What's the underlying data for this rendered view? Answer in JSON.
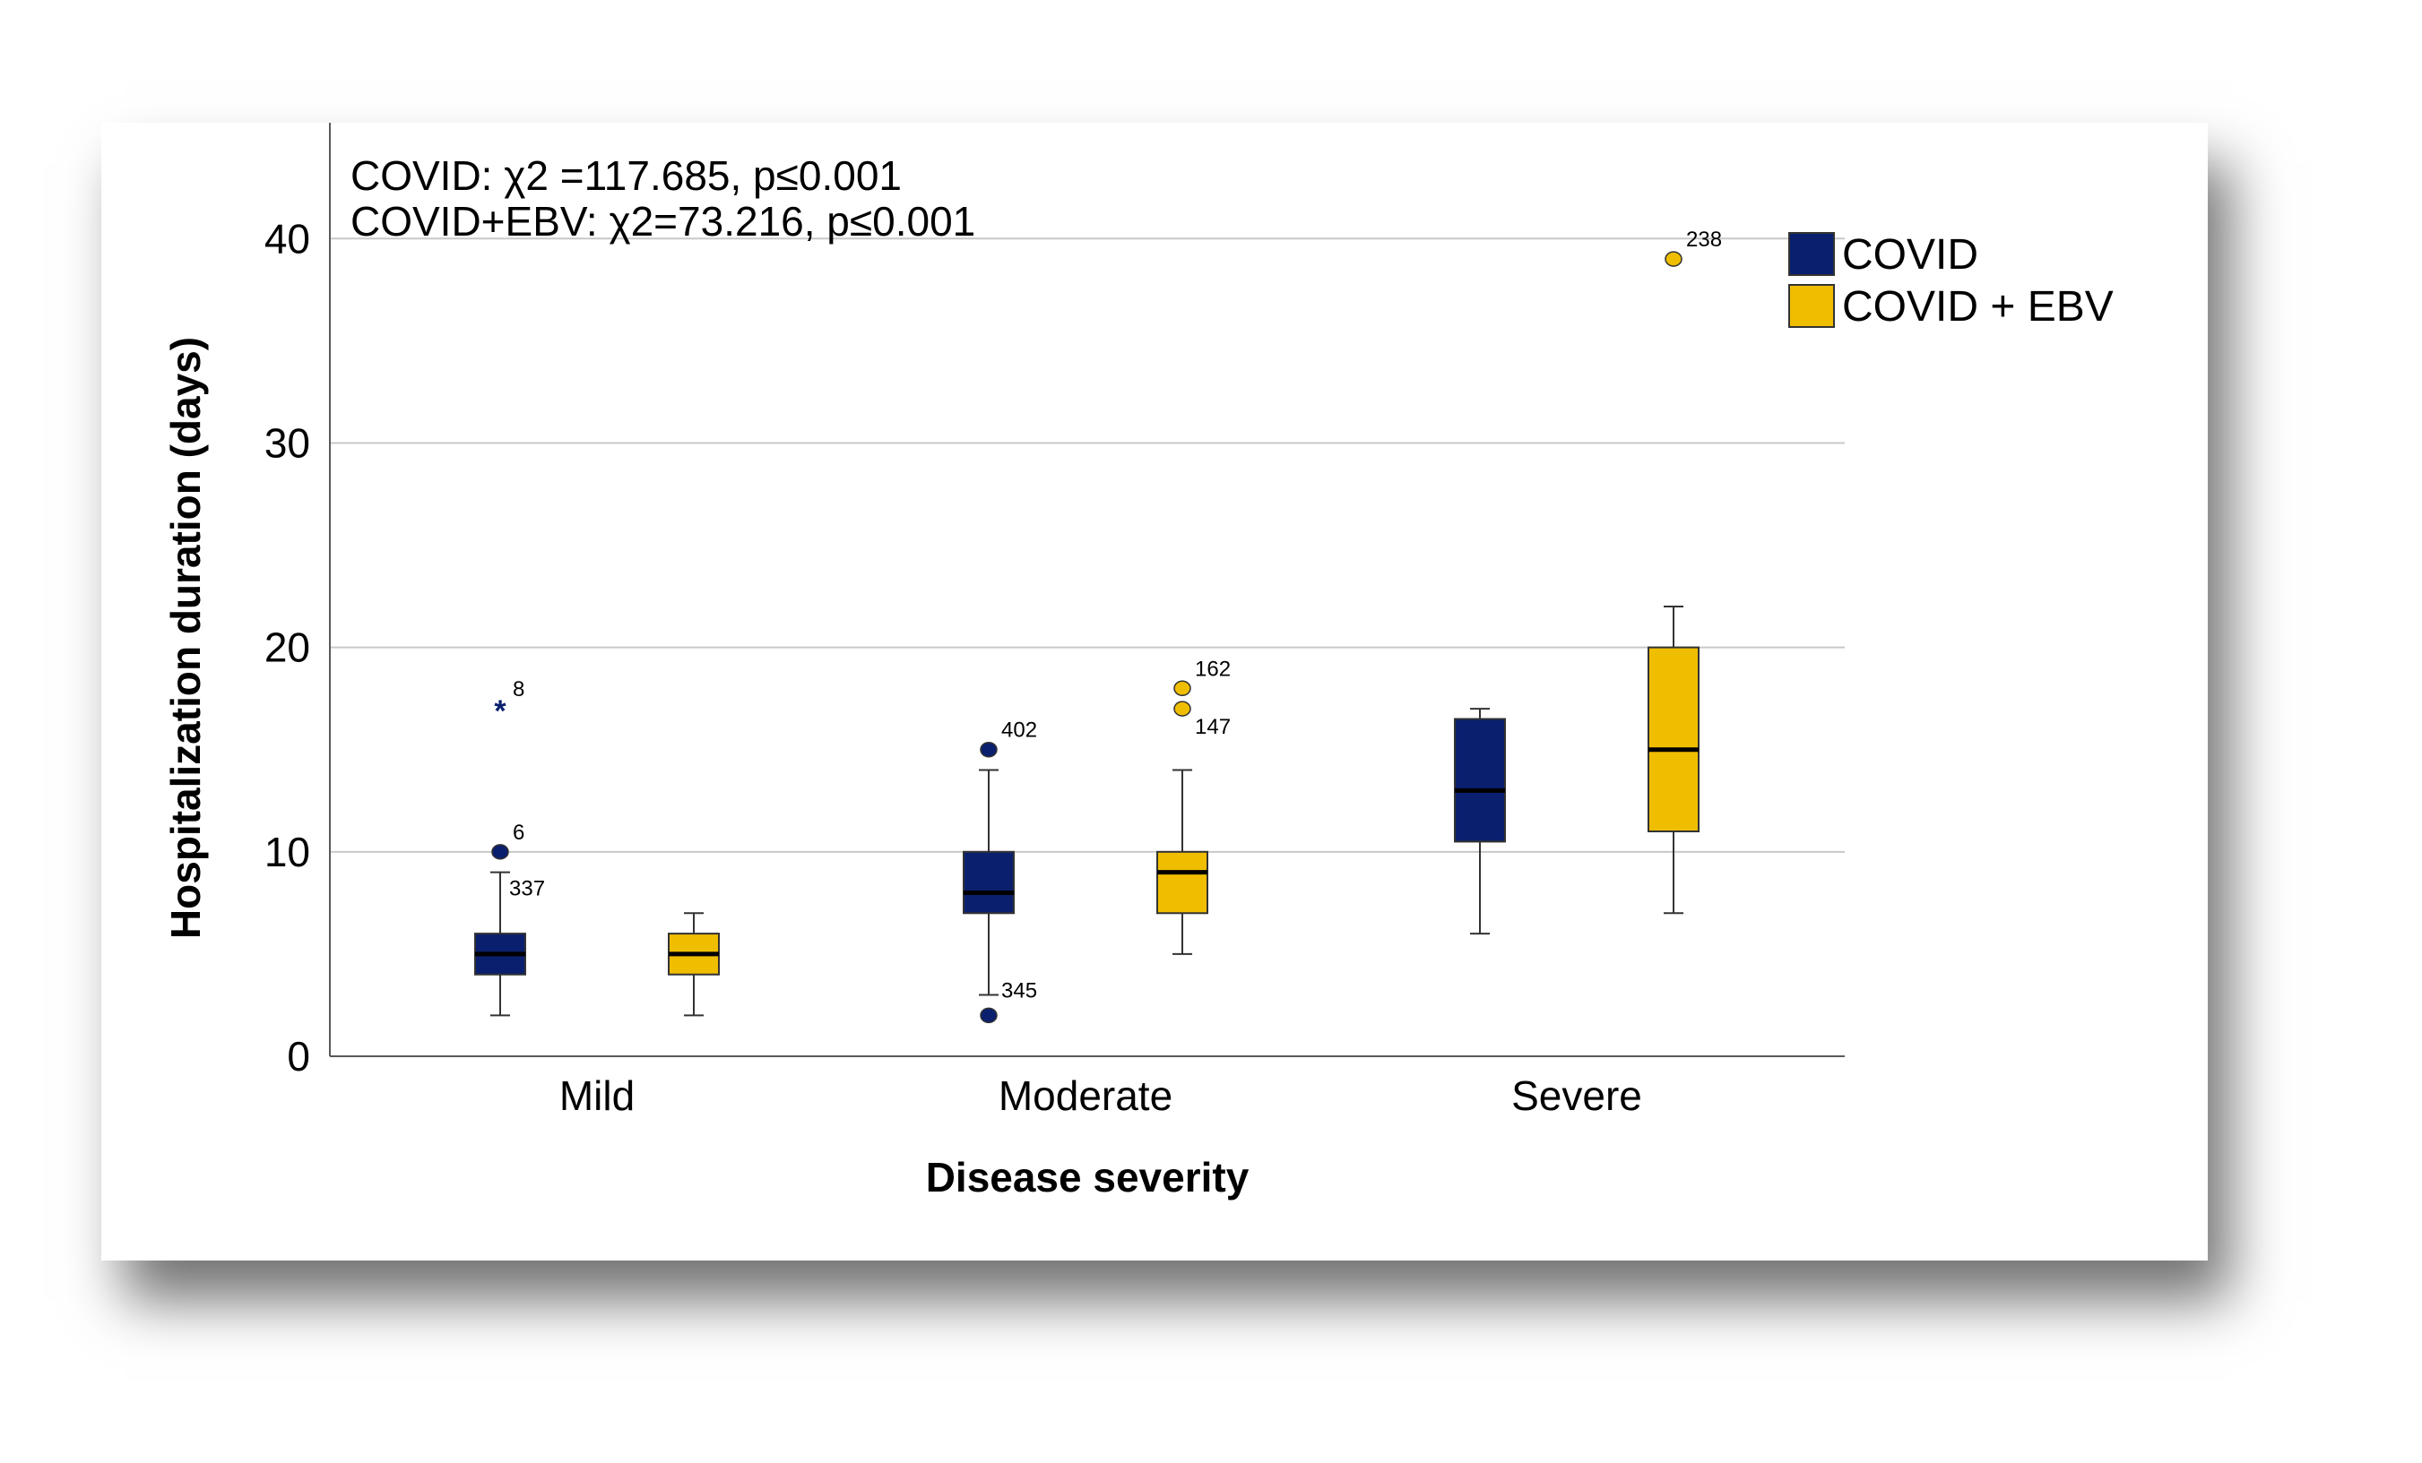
{
  "chart_data": {
    "type": "boxplot",
    "title": "",
    "xlabel": "Disease severity",
    "ylabel": "Hospitalization duration (days)",
    "ylim": [
      0,
      44
    ],
    "yticks": [
      0,
      10,
      20,
      30,
      40
    ],
    "grid": true,
    "categories": [
      "Mild",
      "Moderate",
      "Severe"
    ],
    "annotations": [
      "COVID: χ2 =117.685, p≤0.001",
      "COVID+EBV: χ2=73.216, p≤0.001"
    ],
    "legend_position": "top-right",
    "series": [
      {
        "name": "COVID",
        "color": "#0a1f6e",
        "boxes": [
          {
            "category": "Mild",
            "min": 2,
            "q1": 4,
            "median": 5,
            "q3": 6,
            "max": 9,
            "outliers": [
              {
                "value": 17,
                "label": "8",
                "marker": "star"
              },
              {
                "value": 10,
                "label": "6",
                "marker": "circle"
              }
            ],
            "whisker_label": "337"
          },
          {
            "category": "Moderate",
            "min": 3,
            "q1": 7,
            "median": 8,
            "q3": 10,
            "max": 14,
            "outliers": [
              {
                "value": 15,
                "label": "402",
                "marker": "circle"
              },
              {
                "value": 2,
                "label": "345",
                "marker": "circle"
              }
            ]
          },
          {
            "category": "Severe",
            "min": 6,
            "q1": 10.5,
            "median": 13,
            "q3": 16.5,
            "max": 17,
            "outliers": []
          }
        ]
      },
      {
        "name": "COVID + EBV",
        "color": "#f0be00",
        "boxes": [
          {
            "category": "Mild",
            "min": 2,
            "q1": 4,
            "median": 5,
            "q3": 6,
            "max": 7,
            "outliers": []
          },
          {
            "category": "Moderate",
            "min": 5,
            "q1": 7,
            "median": 9,
            "q3": 10,
            "max": 14,
            "outliers": [
              {
                "value": 18,
                "label": "162",
                "marker": "circle"
              },
              {
                "value": 17,
                "label": "147",
                "marker": "circle"
              }
            ]
          },
          {
            "category": "Severe",
            "min": 7,
            "q1": 11,
            "median": 15,
            "q3": 20,
            "max": 22,
            "outliers": [
              {
                "value": 39,
                "label": "238",
                "marker": "circle"
              }
            ]
          }
        ]
      }
    ]
  }
}
